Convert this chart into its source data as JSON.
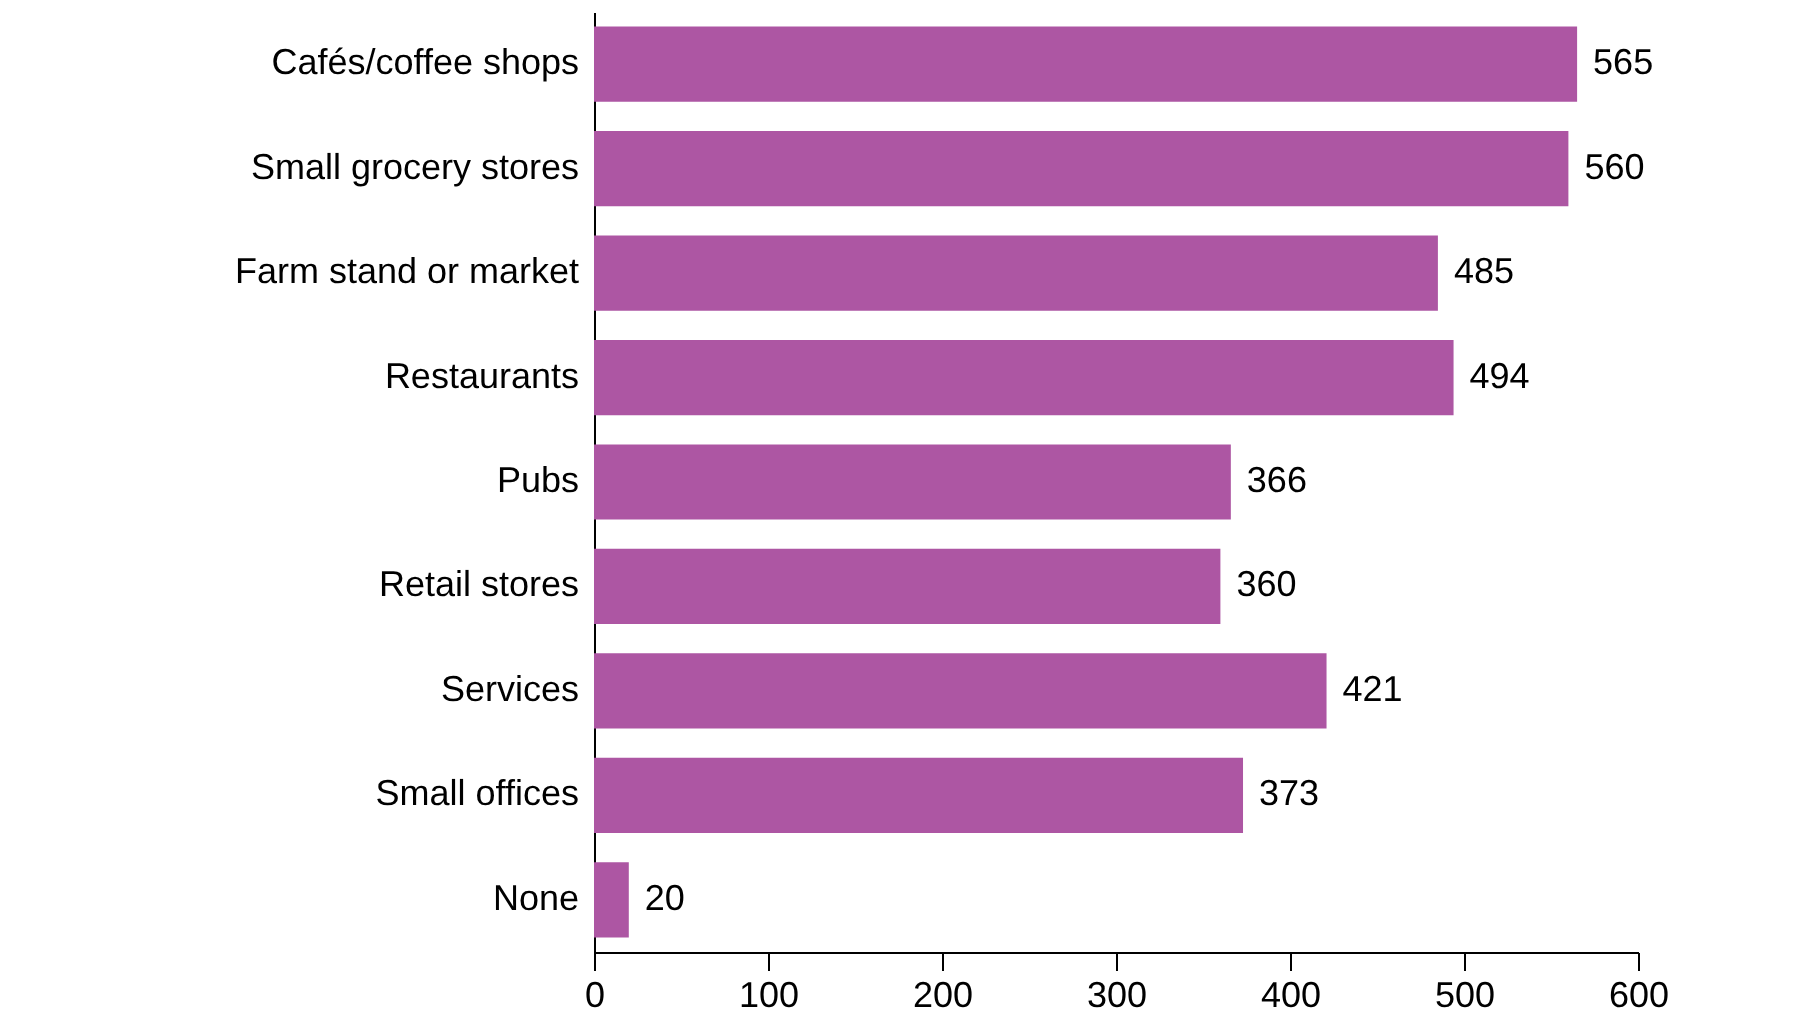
{
  "chart_data": {
    "type": "bar",
    "orientation": "horizontal",
    "categories": [
      "Cafés/coffee shops",
      "Small grocery stores",
      "Farm stand or market",
      "Restaurants",
      "Pubs",
      "Retail stores",
      "Services",
      "Small offices",
      "None"
    ],
    "values": [
      565,
      560,
      485,
      494,
      366,
      360,
      421,
      373,
      20
    ],
    "color": "#ad56a3",
    "xlim": [
      0,
      600
    ],
    "xticks": [
      0,
      100,
      200,
      300,
      400,
      500,
      600
    ],
    "data_labels": true,
    "grid": false
  }
}
